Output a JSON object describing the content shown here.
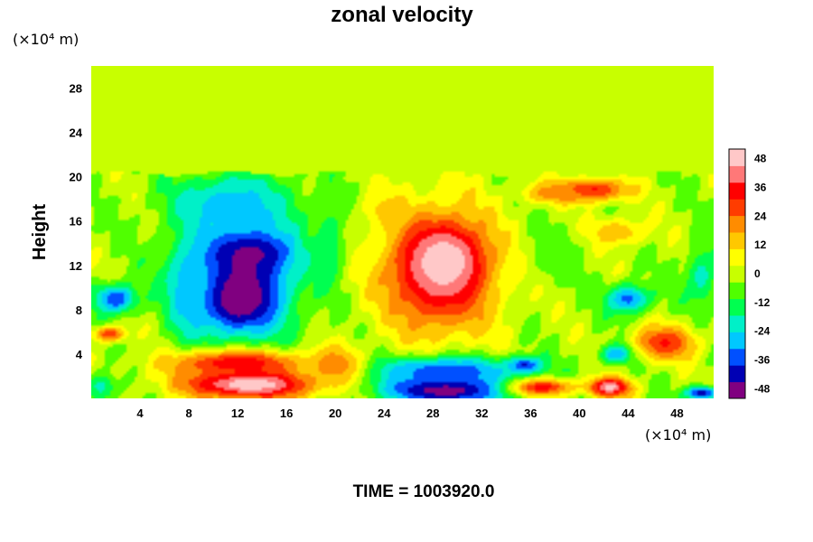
{
  "chart_data": {
    "type": "heatmap",
    "title": "zonal velocity",
    "ylabel": "Height",
    "xunit": "(×10⁴ m)",
    "yunit": "(×10⁴ m)",
    "footer": "TIME = 1003920.0",
    "xlim": [
      0,
      51
    ],
    "ylim": [
      0,
      30
    ],
    "x_ticks": [
      "4",
      "8",
      "12",
      "16",
      "20",
      "24",
      "28",
      "32",
      "36",
      "40",
      "44",
      "48"
    ],
    "x_tick_values": [
      4,
      8,
      12,
      16,
      20,
      24,
      28,
      32,
      36,
      40,
      44,
      48
    ],
    "y_ticks": [
      "4",
      "8",
      "12",
      "16",
      "20",
      "24",
      "28"
    ],
    "y_tick_values": [
      4,
      8,
      12,
      16,
      20,
      24,
      28
    ],
    "colorbar": {
      "range": [
        -52,
        52
      ],
      "labels": [
        "48",
        "36",
        "24",
        "12",
        "0",
        "-12",
        "-24",
        "-36",
        "-48"
      ],
      "label_values": [
        48,
        36,
        24,
        12,
        0,
        -12,
        -24,
        -36,
        -48
      ],
      "colors": [
        "#800080",
        "#0000b4",
        "#0050ff",
        "#00c8ff",
        "#00f0c8",
        "#00ff50",
        "#50ff00",
        "#c8ff00",
        "#ffff00",
        "#ffc800",
        "#ff8c00",
        "#ff3c00",
        "#ff0000",
        "#ff7878",
        "#ffc8c8"
      ]
    },
    "background_value": -2,
    "features": [
      {
        "x": 12.5,
        "y": 11.0,
        "rx": 5.0,
        "ry": 6.5,
        "value": -44
      },
      {
        "x": 12.0,
        "y": 8.8,
        "rx": 3.0,
        "ry": 2.5,
        "value": -52
      },
      {
        "x": 13.0,
        "y": 13.2,
        "rx": 3.5,
        "ry": 2.0,
        "value": -48
      },
      {
        "x": 11.5,
        "y": 17.5,
        "rx": 5.5,
        "ry": 3.0,
        "value": -28
      },
      {
        "x": 8.0,
        "y": 10.0,
        "rx": 2.0,
        "ry": 5.0,
        "value": -30
      },
      {
        "x": 2.0,
        "y": 9.0,
        "rx": 2.0,
        "ry": 1.5,
        "value": -38
      },
      {
        "x": 28.5,
        "y": 11.5,
        "rx": 5.5,
        "ry": 6.5,
        "value": 42
      },
      {
        "x": 29.0,
        "y": 12.5,
        "rx": 3.0,
        "ry": 3.0,
        "value": 50
      },
      {
        "x": 13.0,
        "y": 1.3,
        "rx": 6.5,
        "ry": 1.6,
        "value": 52
      },
      {
        "x": 12.0,
        "y": 3.2,
        "rx": 6.5,
        "ry": 1.4,
        "value": 36
      },
      {
        "x": 29.0,
        "y": 0.8,
        "rx": 6.0,
        "ry": 1.6,
        "value": -52
      },
      {
        "x": 29.0,
        "y": 2.5,
        "rx": 7.0,
        "ry": 1.5,
        "value": -36
      },
      {
        "x": 20.0,
        "y": 3.0,
        "rx": 2.5,
        "ry": 2.0,
        "value": 22
      },
      {
        "x": 41.0,
        "y": 18.8,
        "rx": 3.5,
        "ry": 1.2,
        "value": 34
      },
      {
        "x": 38.0,
        "y": 18.5,
        "rx": 3.0,
        "ry": 1.0,
        "value": 22
      },
      {
        "x": 47.0,
        "y": 5.0,
        "rx": 3.0,
        "ry": 1.8,
        "value": 32
      },
      {
        "x": 44.0,
        "y": 9.0,
        "rx": 2.0,
        "ry": 1.5,
        "value": -34
      },
      {
        "x": 43.0,
        "y": 4.0,
        "rx": 1.5,
        "ry": 1.0,
        "value": -30
      },
      {
        "x": 35.5,
        "y": 3.0,
        "rx": 1.5,
        "ry": 0.8,
        "value": -40
      },
      {
        "x": 37.0,
        "y": 1.0,
        "rx": 3.0,
        "ry": 0.9,
        "value": 34
      },
      {
        "x": 42.5,
        "y": 1.0,
        "rx": 2.0,
        "ry": 1.0,
        "value": 48
      },
      {
        "x": 50.0,
        "y": 0.5,
        "rx": 1.5,
        "ry": 0.7,
        "value": -44
      },
      {
        "x": 50.0,
        "y": 11.0,
        "rx": 1.5,
        "ry": 3.0,
        "value": -20
      },
      {
        "x": 1.5,
        "y": 5.8,
        "rx": 1.5,
        "ry": 0.8,
        "value": 30
      },
      {
        "x": 0.8,
        "y": 1.0,
        "rx": 1.5,
        "ry": 1.5,
        "value": -20
      },
      {
        "x": 43.0,
        "y": 15.0,
        "rx": 3.0,
        "ry": 1.5,
        "value": 16
      },
      {
        "x": 38.0,
        "y": 13.0,
        "rx": 2.5,
        "ry": 3.0,
        "value": -8
      },
      {
        "x": 24.0,
        "y": 17.0,
        "rx": 2.0,
        "ry": 2.0,
        "value": 12
      },
      {
        "x": 19.5,
        "y": 14.0,
        "rx": 1.5,
        "ry": 4.0,
        "value": -16
      }
    ]
  }
}
